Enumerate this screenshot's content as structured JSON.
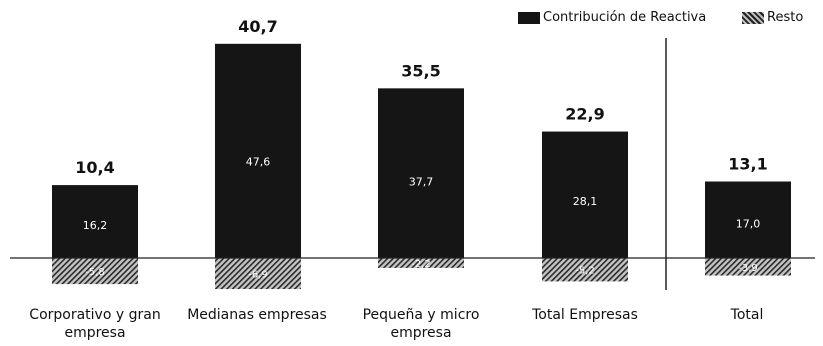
{
  "chart_data": {
    "type": "bar",
    "title": "",
    "xlabel": "",
    "ylabel": "",
    "categories": [
      "Corporativo y gran empresa",
      "Medianas empresas",
      "Pequeña y micro empresa",
      "Total Empresas",
      "Total"
    ],
    "totals": [
      "10,4",
      "40,7",
      "35,5",
      "22,9",
      "13,1"
    ],
    "series": [
      {
        "name": "Contribución de Reactiva",
        "values": [
          16.2,
          47.6,
          37.7,
          28.1,
          17.0
        ],
        "labels": [
          "16,2",
          "47,6",
          "37,7",
          "28,1",
          "17,0"
        ],
        "color": "#151515"
      },
      {
        "name": "Resto",
        "values": [
          -5.8,
          -6.9,
          -2.2,
          -5.2,
          -3.9
        ],
        "labels": [
          "-5,8",
          "-6,9",
          "-2,2",
          "-5,2",
          "-3,9"
        ],
        "color": "#b5b5b5"
      }
    ],
    "ylim": [
      -8,
      50
    ],
    "grid": false,
    "legend_position": "top-right"
  }
}
